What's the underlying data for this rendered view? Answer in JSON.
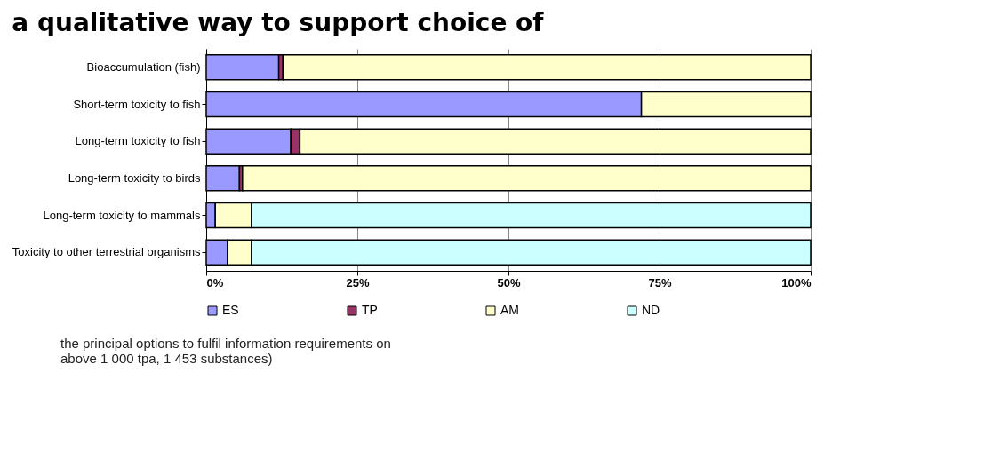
{
  "chart_data": {
    "type": "bar",
    "orientation": "horizontal",
    "stacked": true,
    "title": "a qualitative way to support choice of",
    "categories": [
      "Bioaccumulation (fish)",
      "Short-term toxicity to fish",
      "Long-term toxicity to fish",
      "Long-term toxicity to birds",
      "Long-term toxicity to mammals",
      "Toxicity to other terrestrial organisms"
    ],
    "series": [
      {
        "name": "ES",
        "color": "#9999ff",
        "values": [
          12,
          72,
          14,
          5.5,
          1.5,
          3.5
        ]
      },
      {
        "name": "TP",
        "color": "#993366",
        "values": [
          0.7,
          null,
          1.5,
          0.5,
          null,
          null
        ]
      },
      {
        "name": "AM",
        "color": "#ffffcc",
        "values": [
          87.3,
          28,
          84.5,
          94,
          6,
          4
        ]
      },
      {
        "name": "ND",
        "color": "#ccffff",
        "values": [
          null,
          null,
          null,
          null,
          92.5,
          92.5
        ]
      }
    ],
    "xlim": [
      0,
      100
    ],
    "xticks": [
      {
        "value": 0,
        "label": "0%"
      },
      {
        "value": 25,
        "label": "25%"
      },
      {
        "value": 50,
        "label": "50%"
      },
      {
        "value": 75,
        "label": "75%"
      },
      {
        "value": 100,
        "label": "100%"
      }
    ],
    "grid": "x",
    "legend": "bottom",
    "annotations": [
      "the principal options to fulfil information requirements on",
      "above 1 000 tpa, 1 453 substances)"
    ]
  }
}
